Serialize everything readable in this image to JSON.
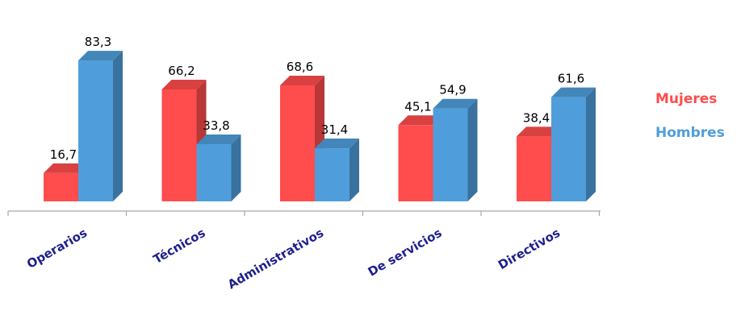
{
  "chart_data": {
    "type": "bar",
    "categories": [
      "Operarios",
      "Técnicos",
      "Administrativos",
      "De servicios",
      "Directivos"
    ],
    "series": [
      {
        "name": "Mujeres",
        "values": [
          16.7,
          66.2,
          68.6,
          45.1,
          38.4
        ],
        "labels": [
          "16,7",
          "66,2",
          "68,6",
          "45,1",
          "38,4"
        ],
        "color": "#ff4c4c"
      },
      {
        "name": "Hombres",
        "values": [
          83.3,
          33.8,
          31.4,
          54.9,
          61.6
        ],
        "labels": [
          "83,3",
          "33,8",
          "31,4",
          "54,9",
          "61,6"
        ],
        "color": "#4f9edb"
      }
    ],
    "title": "",
    "xlabel": "",
    "ylabel": "",
    "ylim": [
      0,
      100
    ],
    "legend_position": "right",
    "grid": false,
    "colors": {
      "axis": "#a6a6a6",
      "category_text": "#1f1f8f",
      "label_text": "#000000"
    }
  }
}
